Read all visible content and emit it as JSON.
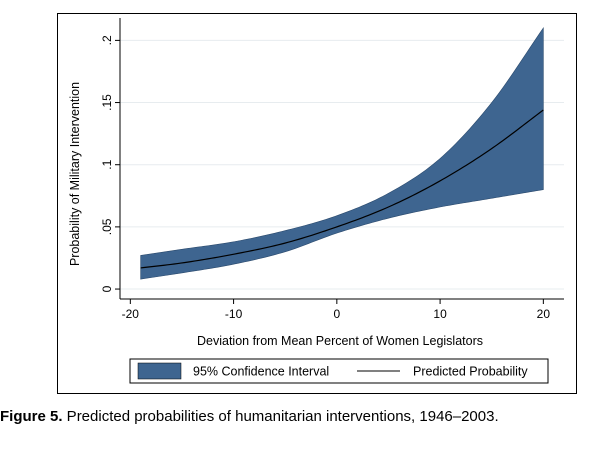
{
  "chart_data": {
    "type": "area",
    "xlabel": "Deviation from Mean Percent of Women Legislators",
    "ylabel": "Probability of Military Intervention",
    "xlim": [
      -21,
      22
    ],
    "ylim": [
      -0.008,
      0.218
    ],
    "x_ticks": [
      -20,
      -10,
      0,
      10,
      20
    ],
    "x_tick_labels": [
      "-20",
      "-10",
      "0",
      "10",
      "20"
    ],
    "y_ticks": [
      0,
      0.05,
      0.1,
      0.15,
      0.2
    ],
    "y_tick_labels": [
      "0",
      ".05",
      ".1",
      ".15",
      ".2"
    ],
    "grid": "horizontal",
    "legend_position": "bottom",
    "series": [
      {
        "name": "95% Confidence Interval",
        "kind": "band",
        "color": "#3e6590",
        "x": [
          -19,
          -15,
          -10,
          -5,
          0,
          5,
          10,
          15,
          20
        ],
        "lower": [
          0.008,
          0.013,
          0.02,
          0.03,
          0.045,
          0.057,
          0.066,
          0.073,
          0.08
        ],
        "upper": [
          0.027,
          0.032,
          0.038,
          0.047,
          0.059,
          0.077,
          0.105,
          0.15,
          0.21
        ]
      },
      {
        "name": "Predicted Probability",
        "kind": "line",
        "color": "#000000",
        "x": [
          -19,
          -15,
          -10,
          -5,
          0,
          5,
          10,
          15,
          20
        ],
        "y": [
          0.017,
          0.021,
          0.028,
          0.037,
          0.05,
          0.066,
          0.087,
          0.113,
          0.144
        ]
      }
    ]
  },
  "caption": {
    "label": "Figure 5.",
    "text": " Predicted probabilities of humanitarian interventions, 1946–2003."
  }
}
